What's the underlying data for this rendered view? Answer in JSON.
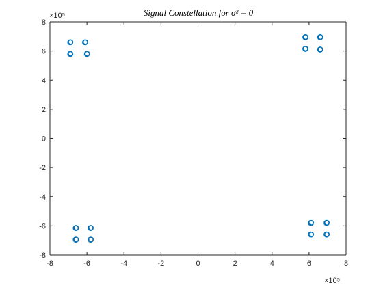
{
  "chart_data": {
    "type": "scatter",
    "title": "Signal Constellation for σ² = 0",
    "xlabel": "",
    "ylabel": "",
    "x_exponent_label": "×10⁵",
    "y_exponent_label": "×10⁵",
    "xlim": [
      -8,
      8
    ],
    "ylim": [
      -8,
      8
    ],
    "xticks": [
      -8,
      -6,
      -4,
      -2,
      0,
      2,
      4,
      6,
      8
    ],
    "yticks": [
      -8,
      -6,
      -4,
      -2,
      0,
      2,
      4,
      6,
      8
    ],
    "xtick_labels": [
      "-8",
      "-6",
      "-4",
      "-2",
      "0",
      "2",
      "4",
      "6",
      "8"
    ],
    "ytick_labels": [
      "-8",
      "-6",
      "-4",
      "-2",
      "0",
      "2",
      "4",
      "6",
      "8"
    ],
    "grid": false,
    "marker": "circle-open",
    "color": "#0072BD",
    "series": [
      {
        "points": [
          {
            "x": -6.9,
            "y": 6.6
          },
          {
            "x": -6.1,
            "y": 6.6
          },
          {
            "x": -6.9,
            "y": 5.8
          },
          {
            "x": -6.0,
            "y": 5.8
          },
          {
            "x": 5.8,
            "y": 6.95
          },
          {
            "x": 6.6,
            "y": 6.95
          },
          {
            "x": 5.8,
            "y": 6.15
          },
          {
            "x": 6.6,
            "y": 6.1
          },
          {
            "x": -6.6,
            "y": -6.15
          },
          {
            "x": -5.8,
            "y": -6.15
          },
          {
            "x": -6.6,
            "y": -6.95
          },
          {
            "x": -5.8,
            "y": -6.95
          },
          {
            "x": 6.1,
            "y": -5.8
          },
          {
            "x": 6.95,
            "y": -5.8
          },
          {
            "x": 6.1,
            "y": -6.6
          },
          {
            "x": 6.95,
            "y": -6.6
          }
        ]
      }
    ]
  }
}
